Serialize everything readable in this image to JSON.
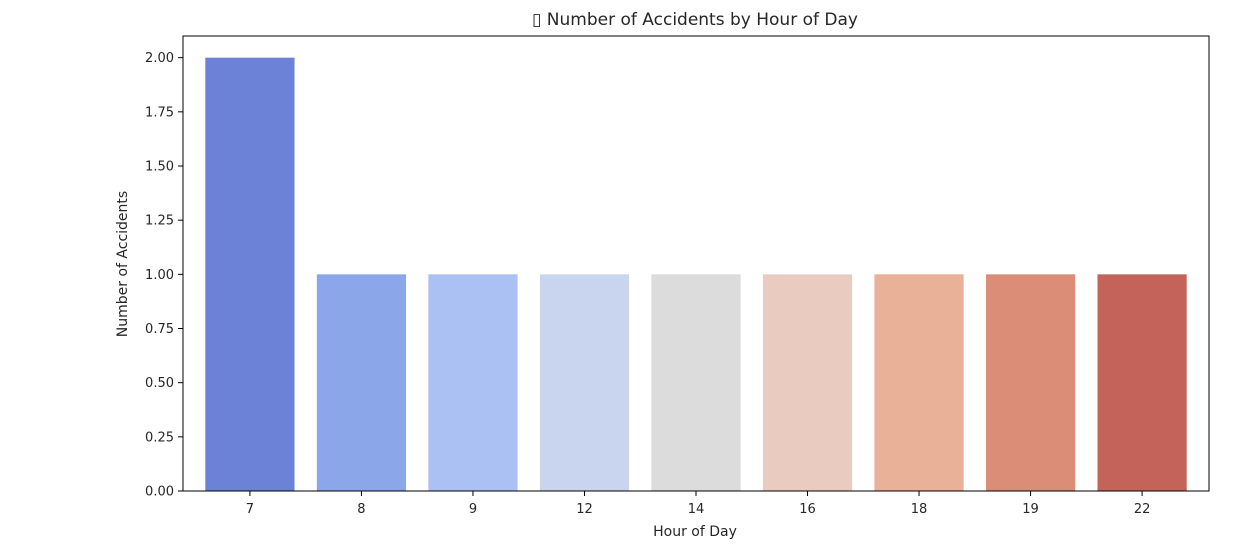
{
  "chart_data": {
    "type": "bar",
    "title": "▯ Number of Accidents by Hour of Day",
    "xlabel": "Hour of Day",
    "ylabel": "Number of Accidents",
    "categories": [
      "7",
      "8",
      "9",
      "12",
      "14",
      "16",
      "18",
      "19",
      "22"
    ],
    "values": [
      2,
      1,
      1,
      1,
      1,
      1,
      1,
      1,
      1
    ],
    "colors": [
      "#6b82d6",
      "#8ba6e9",
      "#abc1f4",
      "#c9d4ef",
      "#dcdcdc",
      "#e9ccbf",
      "#e9b197",
      "#db8d77",
      "#c46359"
    ],
    "ylim": [
      0,
      2.1
    ],
    "yticks": [
      "0.00",
      "0.25",
      "0.50",
      "0.75",
      "1.00",
      "1.25",
      "1.50",
      "1.75",
      "2.00"
    ],
    "grid": false,
    "legend": "none"
  }
}
